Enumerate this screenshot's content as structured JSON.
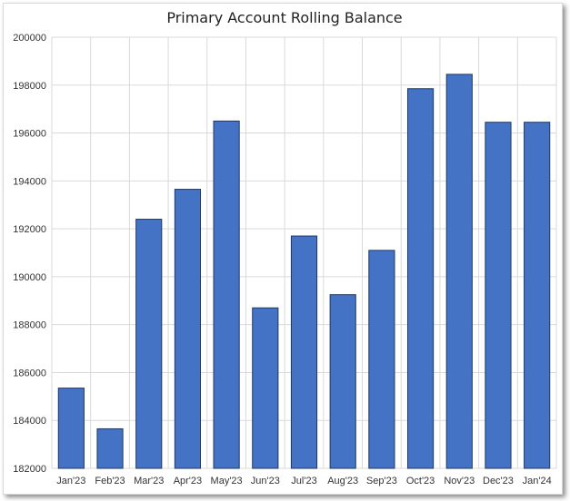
{
  "chart_data": {
    "type": "bar",
    "title": "Primary Account Rolling Balance",
    "xlabel": "",
    "ylabel": "",
    "categories": [
      "Jan'23",
      "Feb'23",
      "Mar'23",
      "Apr'23",
      "May'23",
      "Jun'23",
      "Jul'23",
      "Aug'23",
      "Sep'23",
      "Oct'23",
      "Nov'23",
      "Dec'23",
      "Jan'24"
    ],
    "values": [
      185350,
      183650,
      192400,
      193650,
      196500,
      188700,
      191700,
      189250,
      191100,
      197850,
      198450,
      196450,
      196450
    ],
    "ylim": [
      182000,
      200000
    ],
    "yticks": [
      182000,
      184000,
      186000,
      188000,
      190000,
      192000,
      194000,
      196000,
      198000,
      200000
    ],
    "grid": true,
    "bar_color": "#4472c4",
    "bar_edge_color": "#1f3864",
    "grid_color": "#d9d9d9"
  }
}
